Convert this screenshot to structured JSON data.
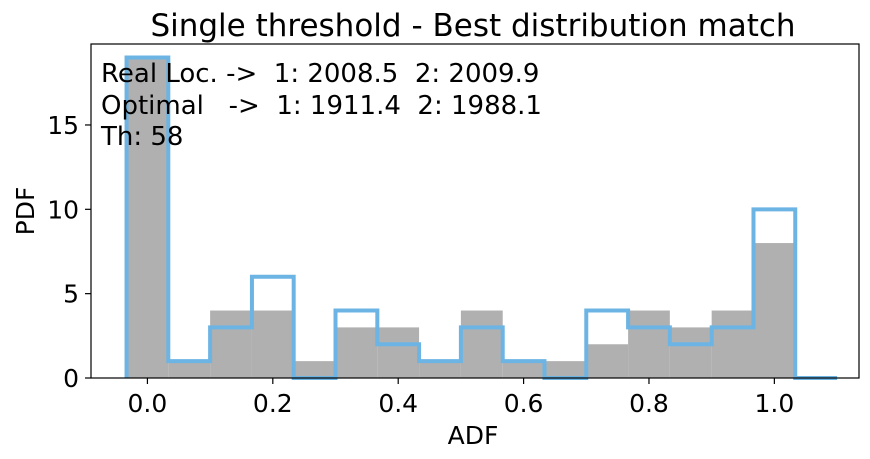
{
  "chart_data": {
    "type": "bar",
    "title": "Single threshold - Best distribution match",
    "xlabel": "ADF",
    "ylabel": "PDF",
    "xlim": [
      -0.09,
      1.135
    ],
    "ylim": [
      0,
      19.8
    ],
    "xticks": [
      0.0,
      0.2,
      0.4,
      0.6,
      0.8,
      1.0
    ],
    "xtick_labels": [
      "0.0",
      "0.2",
      "0.4",
      "0.6",
      "0.8",
      "1.0"
    ],
    "yticks": [
      0,
      5,
      10,
      15
    ],
    "ytick_labels": [
      "0",
      "5",
      "10",
      "15"
    ],
    "bin_edges": [
      -0.0333,
      0.0333,
      0.1,
      0.1667,
      0.2333,
      0.3,
      0.3667,
      0.4333,
      0.5,
      0.5667,
      0.6333,
      0.7,
      0.7667,
      0.8333,
      0.9,
      0.9667,
      1.0333,
      1.1
    ],
    "series": [
      {
        "style": "filled",
        "color": "#b0b0b0",
        "values": [
          19,
          1,
          4,
          4,
          1,
          3,
          3,
          1,
          4,
          1,
          1,
          2,
          4,
          3,
          4,
          8,
          0
        ]
      },
      {
        "style": "step",
        "color": "#6cb4e4",
        "values": [
          19,
          1,
          3,
          6,
          0,
          4,
          2,
          1,
          3,
          1,
          0,
          4,
          3,
          2,
          3,
          10,
          0
        ]
      }
    ],
    "annotations": [
      "Real Loc. ->  1: 2008.5  2: 2009.9",
      "Optimal   ->  1: 1911.4  2: 1988.1",
      "Th: 58"
    ],
    "grid": false
  }
}
